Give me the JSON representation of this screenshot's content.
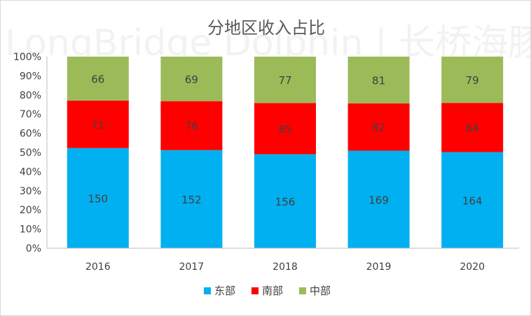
{
  "watermark": {
    "text": "LongBridge Dolphin | 长桥海豚投研"
  },
  "colors": {
    "east": "#00b0f0",
    "south": "#ff0000",
    "central": "#9bbb59",
    "axis": "#bfbfbf",
    "text": "#404040"
  },
  "chart_data": {
    "type": "bar",
    "stacked": "percent",
    "title": "分地区收入占比",
    "categories": [
      "2016",
      "2017",
      "2018",
      "2019",
      "2020"
    ],
    "series": [
      {
        "name": "东部",
        "values": [
          150,
          152,
          156,
          169,
          164
        ]
      },
      {
        "name": "南部",
        "values": [
          71,
          76,
          85,
          82,
          84
        ]
      },
      {
        "name": "中部",
        "values": [
          66,
          69,
          77,
          81,
          79
        ]
      }
    ],
    "y_ticks": [
      "0%",
      "10%",
      "20%",
      "30%",
      "40%",
      "50%",
      "60%",
      "70%",
      "80%",
      "90%",
      "100%"
    ],
    "ylim": [
      0,
      100
    ],
    "grid": false,
    "legend_position": "bottom"
  }
}
